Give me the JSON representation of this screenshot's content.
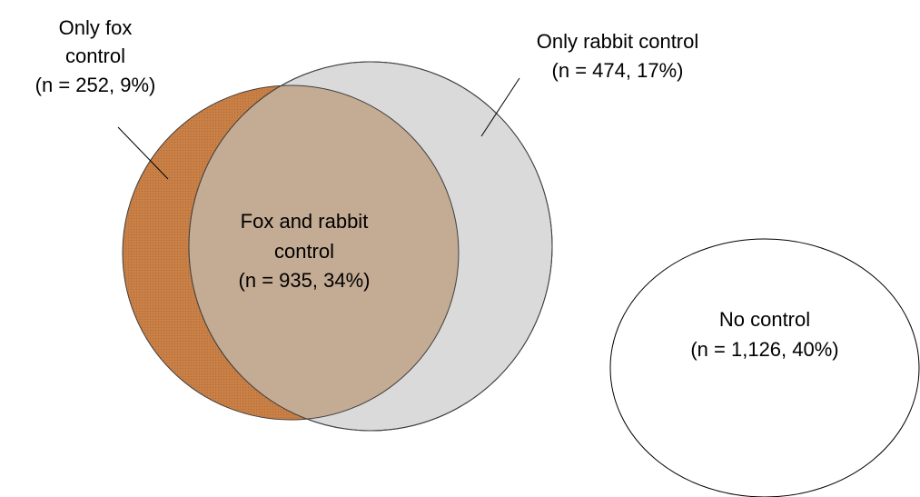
{
  "regions": [
    {
      "lines": [
        "Only fox",
        "control",
        "(n = 252, 9%)"
      ]
    },
    {
      "lines": [
        "Only rabbit control",
        "(n = 474, 17%)"
      ]
    },
    {
      "lines": [
        "Fox and rabbit",
        "control",
        "(n = 935, 34%)"
      ]
    },
    {
      "lines": [
        "No control",
        "(n = 1,126, 40%)"
      ]
    }
  ]
}
